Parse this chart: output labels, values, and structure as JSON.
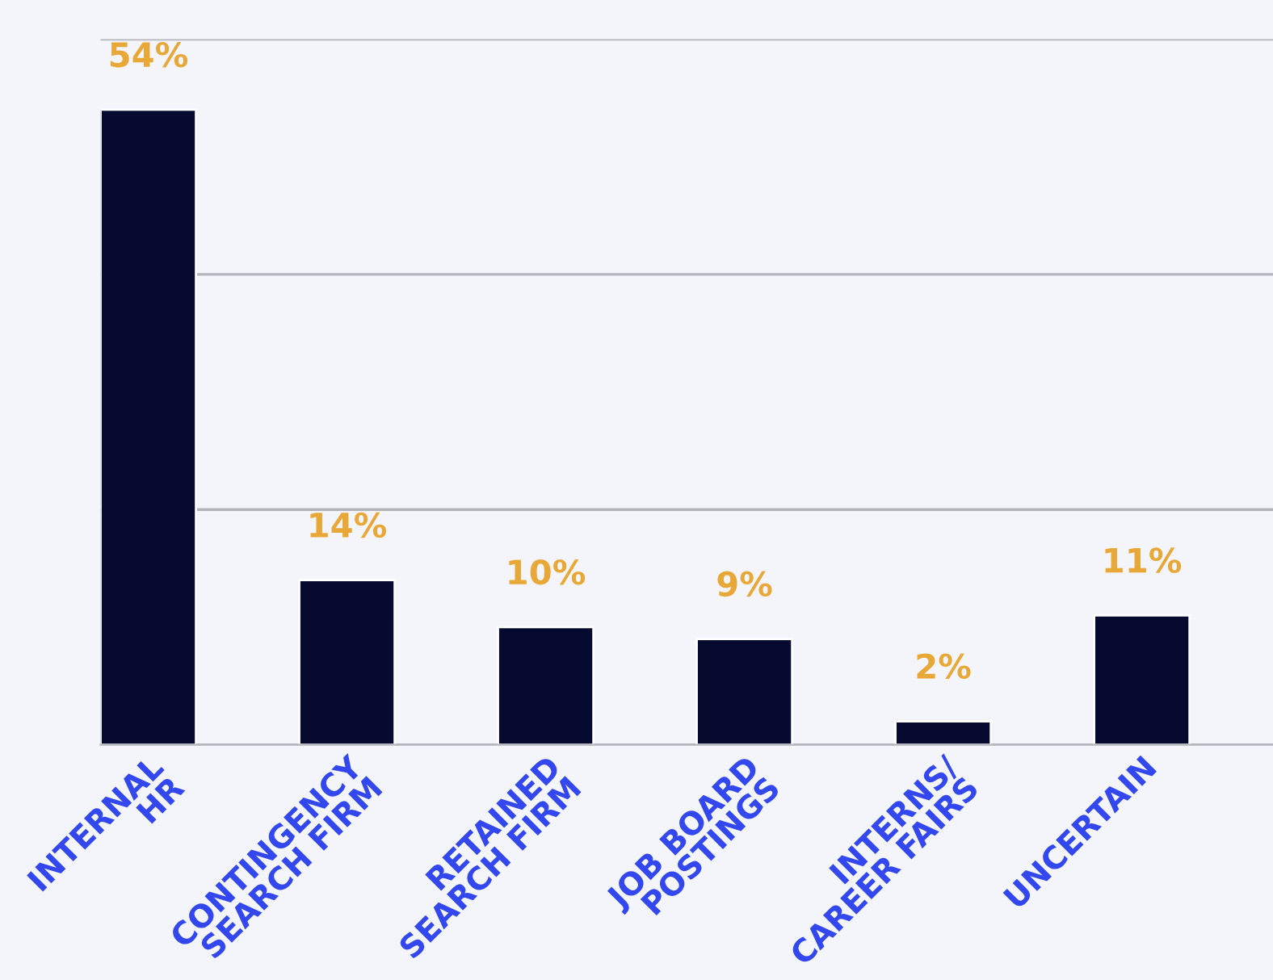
{
  "chart_data": {
    "type": "bar",
    "categories": [
      "INTERNAL\nHR",
      "CONTINGENCY\nSEARCH FIRM",
      "RETAINED\nSEARCH FIRM",
      "JOB BOARD\nPOSTINGS",
      "INTERNS/\nCAREER FAIRS",
      "UNCERTAIN"
    ],
    "values": [
      54,
      14,
      10,
      9,
      2,
      11
    ],
    "value_labels": [
      "54%",
      "14%",
      "10%",
      "9%",
      "2%",
      "11%"
    ],
    "color": "#050a2e",
    "ylim": [
      0,
      60
    ],
    "yticks": [
      {
        "value": 0,
        "label": null
      },
      {
        "value": 20,
        "label": null
      },
      {
        "value": 40,
        "label": null
      },
      {
        "value": 60,
        "label": null
      }
    ],
    "tick_labels": "x",
    "grid": "y",
    "legend": false
  }
}
